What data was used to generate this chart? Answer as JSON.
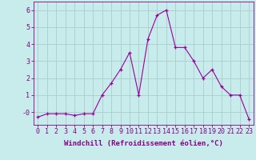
{
  "x": [
    0,
    1,
    2,
    3,
    4,
    5,
    6,
    7,
    8,
    9,
    10,
    11,
    12,
    13,
    14,
    15,
    16,
    17,
    18,
    19,
    20,
    21,
    22,
    23
  ],
  "y": [
    -0.3,
    -0.1,
    -0.1,
    -0.1,
    -0.2,
    -0.1,
    -0.1,
    1.0,
    1.7,
    2.5,
    3.5,
    1.0,
    4.3,
    5.7,
    6.0,
    3.8,
    3.8,
    3.0,
    2.0,
    2.5,
    1.5,
    1.0,
    1.0,
    -0.4
  ],
  "line_color": "#990099",
  "marker": "+",
  "marker_size": 3,
  "background_color": "#c8ecec",
  "grid_color": "#aacccc",
  "xlabel": "Windchill (Refroidissement éolien,°C)",
  "ylabel": "",
  "ylim": [
    -0.75,
    6.5
  ],
  "xlim": [
    -0.5,
    23.5
  ],
  "yticks": [
    0,
    1,
    2,
    3,
    4,
    5,
    6
  ],
  "ytick_labels": [
    "-0",
    "1",
    "2",
    "3",
    "4",
    "5",
    "6"
  ],
  "xticks": [
    0,
    1,
    2,
    3,
    4,
    5,
    6,
    7,
    8,
    9,
    10,
    11,
    12,
    13,
    14,
    15,
    16,
    17,
    18,
    19,
    20,
    21,
    22,
    23
  ],
  "xlabel_fontsize": 6.5,
  "tick_fontsize": 6,
  "label_color": "#880088",
  "spine_color": "#880088",
  "linewidth": 0.8,
  "markeredgewidth": 0.9
}
